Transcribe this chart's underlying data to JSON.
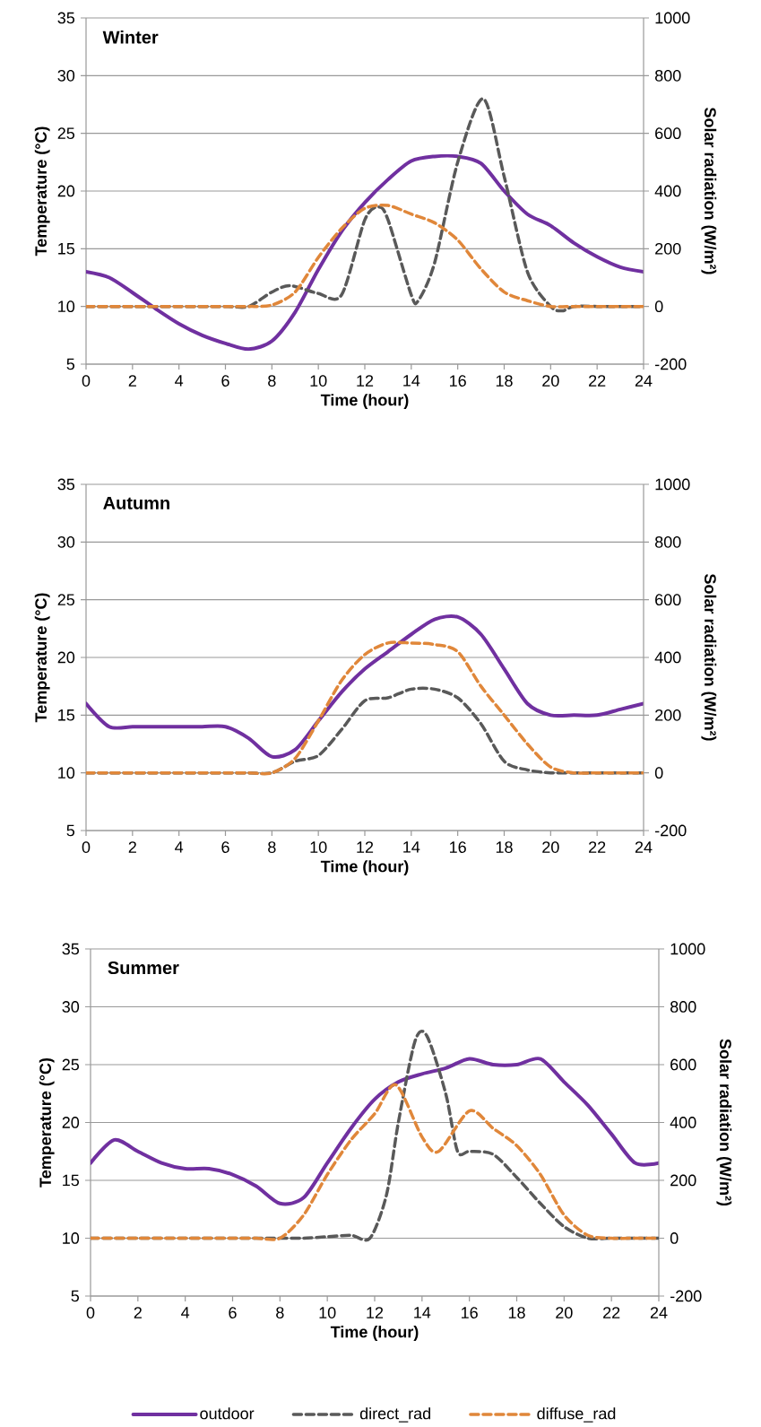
{
  "chart_data": [
    {
      "type": "line",
      "title": "Winter",
      "xlabel": "Time (hour)",
      "ylabel": "Temperature (°C)",
      "y2label": "Solar radiation (W/m²)",
      "xlim": [
        0,
        24
      ],
      "xticks": [
        0,
        2,
        4,
        6,
        8,
        10,
        12,
        14,
        16,
        18,
        20,
        22,
        24
      ],
      "ylim": [
        5,
        35
      ],
      "yticks": [
        5,
        10,
        15,
        20,
        25,
        30,
        35
      ],
      "y2lim": [
        -200,
        1000
      ],
      "y2ticks": [
        -200,
        0,
        200,
        400,
        600,
        800,
        1000
      ],
      "grid": "y",
      "series": [
        {
          "color": "#7030a0",
          "line_style": "solid",
          "x": [
            0,
            1,
            2,
            3,
            4,
            5,
            6,
            7,
            8,
            9,
            10,
            11,
            12,
            13,
            14,
            15,
            16,
            17,
            18,
            19,
            20,
            21,
            22,
            23,
            24
          ],
          "values": [
            13,
            12.5,
            11.2,
            9.8,
            8.5,
            7.5,
            6.8,
            6.3,
            7,
            9.5,
            13.2,
            16.5,
            19,
            21,
            22.6,
            23,
            23,
            22.4,
            20,
            18,
            17,
            15.5,
            14.3,
            13.4,
            13
          ]
        },
        {
          "color": "#595959",
          "line_style": "dashed",
          "axis": "y2",
          "x": [
            0,
            2,
            4,
            6,
            7,
            8,
            8.8,
            10,
            11,
            12,
            12.6,
            13,
            14,
            14.3,
            15,
            16,
            17.1,
            18,
            19,
            20,
            20.5,
            21,
            22,
            23,
            24
          ],
          "values": [
            0,
            0,
            0,
            0,
            0,
            50,
            72,
            45,
            40,
            300,
            345,
            300,
            40,
            20,
            150,
            500,
            720,
            450,
            120,
            0,
            -15,
            0,
            0,
            0,
            0
          ]
        },
        {
          "color": "#e0873a",
          "line_style": "dashed",
          "axis": "y2",
          "x": [
            0,
            1,
            2,
            3,
            4,
            5,
            6,
            7,
            8,
            9,
            10,
            11,
            12,
            13,
            14,
            15,
            16,
            17,
            18,
            19,
            20,
            21,
            22,
            23,
            24
          ],
          "values": [
            0,
            0,
            0,
            0,
            0,
            0,
            0,
            0,
            5,
            50,
            170,
            270,
            340,
            350,
            320,
            290,
            230,
            130,
            50,
            20,
            0,
            0,
            0,
            0,
            0
          ]
        }
      ]
    },
    {
      "type": "line",
      "title": "Autumn",
      "xlabel": "Time (hour)",
      "ylabel": "Temperature (°C)",
      "y2label": "Solar radiation (W/m²)",
      "xlim": [
        0,
        24
      ],
      "xticks": [
        0,
        2,
        4,
        6,
        8,
        10,
        12,
        14,
        16,
        18,
        20,
        22,
        24
      ],
      "ylim": [
        5,
        35
      ],
      "yticks": [
        5,
        10,
        15,
        20,
        25,
        30,
        35
      ],
      "y2lim": [
        -200,
        1000
      ],
      "y2ticks": [
        -200,
        0,
        200,
        400,
        600,
        800,
        1000
      ],
      "grid": "y",
      "series": [
        {
          "color": "#7030a0",
          "line_style": "solid",
          "x": [
            0,
            1,
            2,
            3,
            4,
            5,
            6,
            7,
            8,
            9,
            10,
            11,
            12,
            13,
            14,
            15,
            16,
            17,
            18,
            19,
            20,
            21,
            22,
            23,
            24
          ],
          "values": [
            16,
            14,
            14,
            14,
            14,
            14,
            14,
            13,
            11.4,
            12,
            14.5,
            17,
            19,
            20.5,
            22,
            23.3,
            23.5,
            22,
            19,
            16,
            15,
            15,
            15,
            15.5,
            16
          ]
        },
        {
          "color": "#595959",
          "line_style": "dashed",
          "axis": "y2",
          "x": [
            0,
            1,
            2,
            3,
            4,
            5,
            6,
            7,
            8,
            9,
            10,
            11,
            12,
            13,
            14,
            15,
            16,
            17,
            18,
            19,
            20,
            21,
            22,
            23,
            24
          ],
          "values": [
            0,
            0,
            0,
            0,
            0,
            0,
            0,
            0,
            0,
            40,
            60,
            150,
            250,
            260,
            290,
            290,
            260,
            170,
            40,
            10,
            0,
            0,
            0,
            0,
            0
          ]
        },
        {
          "color": "#e0873a",
          "line_style": "dashed",
          "axis": "y2",
          "x": [
            0,
            1,
            2,
            3,
            4,
            5,
            6,
            7,
            8,
            9,
            10,
            11,
            12,
            13,
            14,
            15,
            16,
            17,
            18,
            19,
            20,
            21,
            22,
            23,
            24
          ],
          "values": [
            0,
            0,
            0,
            0,
            0,
            0,
            0,
            0,
            0,
            50,
            180,
            320,
            410,
            450,
            450,
            445,
            420,
            300,
            200,
            100,
            20,
            0,
            0,
            0,
            0
          ]
        }
      ]
    },
    {
      "type": "line",
      "title": "Summer",
      "xlabel": "Time (hour)",
      "ylabel": "Temperature (°C)",
      "y2label": "Solar radiation (W/m²)",
      "xlim": [
        0,
        24
      ],
      "xticks": [
        0,
        2,
        4,
        6,
        8,
        10,
        12,
        14,
        16,
        18,
        20,
        22,
        24
      ],
      "ylim": [
        5,
        35
      ],
      "yticks": [
        5,
        10,
        15,
        20,
        25,
        30,
        35
      ],
      "y2lim": [
        -200,
        1000
      ],
      "y2ticks": [
        -200,
        0,
        200,
        400,
        600,
        800,
        1000
      ],
      "grid": "y",
      "legend": "bottom",
      "series": [
        {
          "name": "outdoor",
          "color": "#7030a0",
          "line_style": "solid",
          "x": [
            0,
            1,
            2,
            3,
            4,
            5,
            6,
            7,
            8,
            9,
            10,
            11,
            12,
            13,
            14,
            15,
            16,
            17,
            18,
            19,
            20,
            21,
            22,
            23,
            24
          ],
          "values": [
            16.5,
            18.5,
            17.5,
            16.5,
            16,
            16,
            15.5,
            14.5,
            13,
            13.5,
            16.5,
            19.5,
            22,
            23.5,
            24.2,
            24.7,
            25.5,
            25,
            25,
            25.5,
            23.5,
            21.5,
            19,
            16.5,
            16.5
          ]
        },
        {
          "name": "direct_rad",
          "color": "#595959",
          "line_style": "dashed",
          "axis": "y2",
          "x": [
            0,
            2,
            4,
            6,
            8,
            9,
            10,
            11,
            11.8,
            12.5,
            13,
            13.7,
            14.2,
            15,
            15.5,
            16,
            17,
            18,
            19,
            20,
            21,
            22,
            23,
            24
          ],
          "values": [
            0,
            0,
            0,
            0,
            0,
            0,
            5,
            10,
            0,
            150,
            400,
            680,
            700,
            500,
            300,
            300,
            290,
            210,
            120,
            40,
            0,
            0,
            0,
            0
          ]
        },
        {
          "name": "diffuse_rad",
          "color": "#e0873a",
          "line_style": "dashed",
          "axis": "y2",
          "x": [
            0,
            1,
            2,
            3,
            4,
            5,
            6,
            7,
            8,
            9,
            10,
            11,
            12,
            12.9,
            14,
            14.7,
            16,
            17,
            18,
            19,
            20,
            21,
            22,
            23,
            24
          ],
          "values": [
            0,
            0,
            0,
            0,
            0,
            0,
            0,
            0,
            0,
            80,
            220,
            340,
            430,
            530,
            350,
            300,
            440,
            380,
            320,
            220,
            80,
            10,
            0,
            0,
            0
          ]
        }
      ]
    }
  ]
}
